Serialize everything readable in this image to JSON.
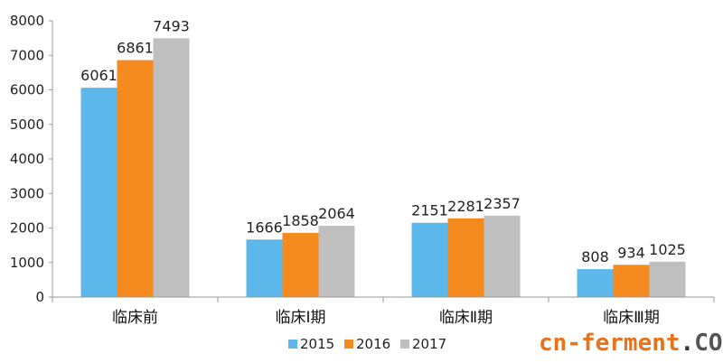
{
  "chart_data": {
    "type": "bar",
    "categories": [
      "临床前",
      "临床Ⅰ期",
      "临床Ⅱ期",
      "临床Ⅲ期"
    ],
    "series": [
      {
        "name": "2015",
        "color": "#5cb8ea",
        "values": [
          6061,
          1666,
          2151,
          808
        ]
      },
      {
        "name": "2016",
        "color": "#f58a1f",
        "values": [
          6861,
          1858,
          2281,
          934
        ]
      },
      {
        "name": "2017",
        "color": "#bfbfbf",
        "values": [
          7493,
          2064,
          2357,
          1025
        ]
      }
    ],
    "yticks": [
      "0",
      "1000",
      "2000",
      "3000",
      "4000",
      "5000",
      "6000",
      "7000",
      "8000"
    ],
    "ylim": [
      0,
      8000
    ],
    "legend_position": "bottom",
    "title": "",
    "xlabel": "",
    "ylabel": ""
  },
  "watermark": {
    "prefix": "cn-ferment",
    "dot": ".",
    "suffix": "COM",
    "prefix_color": "#e8731a",
    "dot_color": "#333333",
    "suffix_color": "#555555"
  }
}
